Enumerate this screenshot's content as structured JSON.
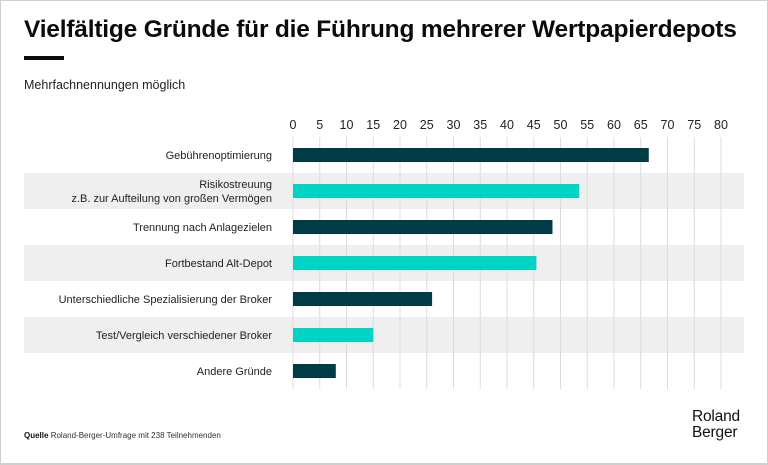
{
  "header": {
    "title": "Vielfältige Gründe für die Führung mehrerer Wertpapierdepots",
    "subtitle": "Mehrfachnennungen möglich"
  },
  "footer": {
    "source_key": "Quelle",
    "source_text": "Roland-Berger-Umfrage mit 238 Teilnehmenden",
    "logo_line1": "Roland",
    "logo_line2": "Berger"
  },
  "colors": {
    "dark_bar": "#003B46",
    "light_bar": "#00D4C4",
    "band": "#EFEFEF",
    "grid": "#DCDCDC"
  },
  "chart_data": {
    "type": "bar",
    "orientation": "horizontal",
    "title": "Vielfältige Gründe für die Führung mehrerer Wertpapierdepots",
    "subtitle": "Mehrfachnennungen möglich",
    "xlabel": "",
    "ylabel": "",
    "xlim": [
      0,
      80
    ],
    "xticks": [
      0,
      5,
      10,
      15,
      20,
      25,
      30,
      35,
      40,
      45,
      50,
      55,
      60,
      65,
      70,
      75,
      80
    ],
    "axis_position": "top",
    "grid": true,
    "categories": [
      [
        "Gebührenoptimierung"
      ],
      [
        "Risikostreuung",
        "z.B. zur Aufteilung von großen Vermögen"
      ],
      [
        "Trennung nach Anlagezielen"
      ],
      [
        "Fortbestand Alt-Depot"
      ],
      [
        "Unterschiedliche Spezialisierung der Broker"
      ],
      [
        "Test/Vergleich verschiedener Broker"
      ],
      [
        "Andere Gründe"
      ]
    ],
    "values": [
      66.5,
      53.5,
      48.5,
      45.5,
      26,
      15,
      8
    ],
    "bar_colors": [
      "dark",
      "light",
      "dark",
      "light",
      "dark",
      "light",
      "dark"
    ],
    "alternating_row_bands": true
  }
}
